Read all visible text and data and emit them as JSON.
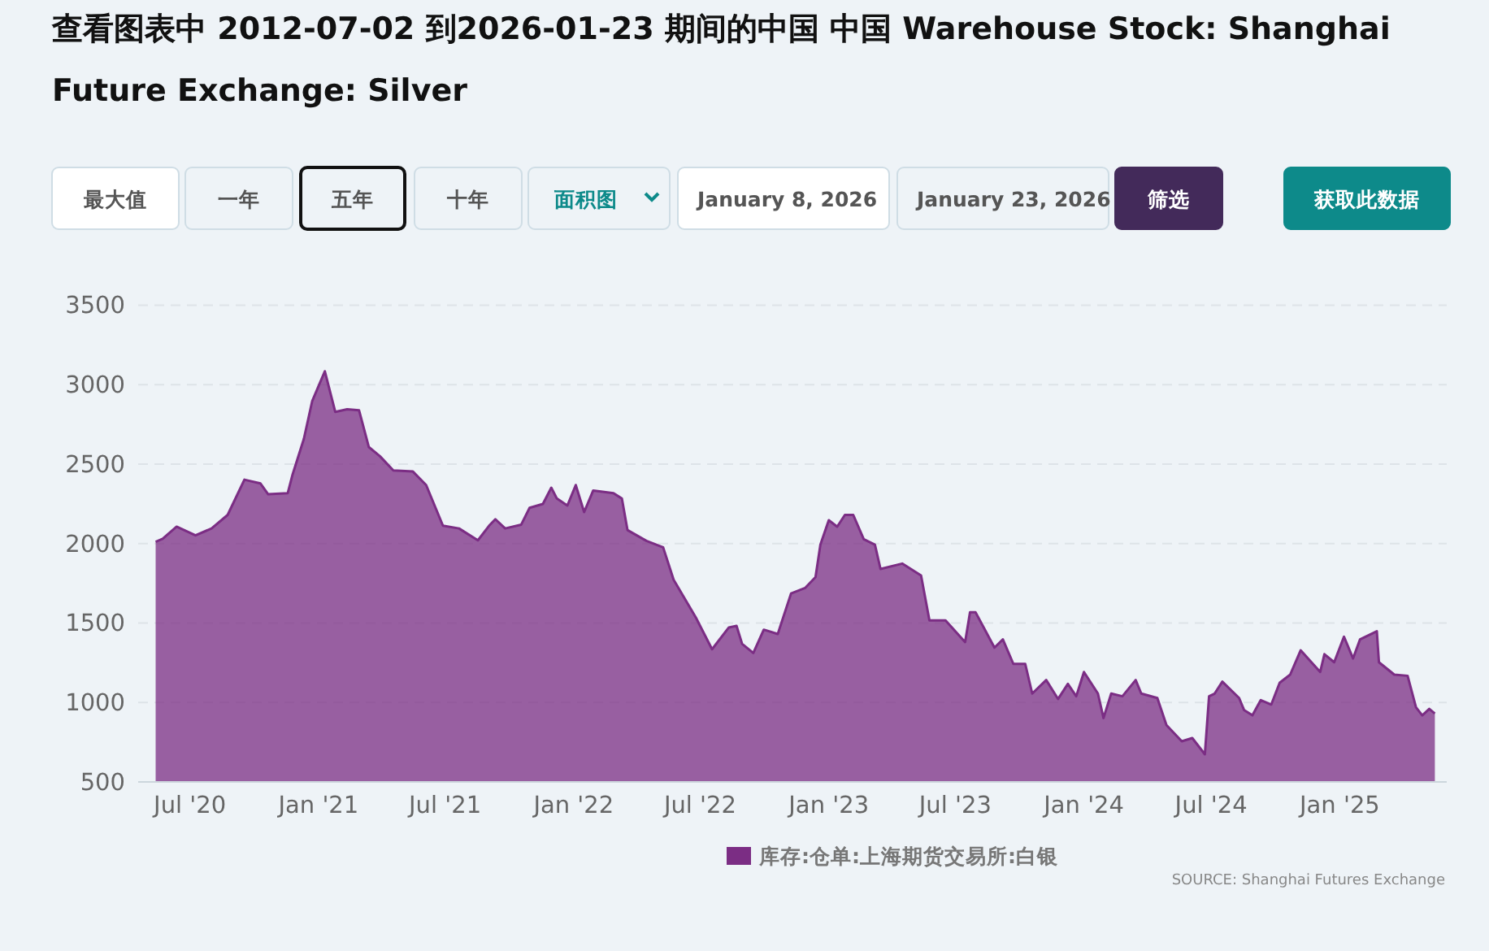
{
  "chart_data": {
    "type": "area",
    "title": "查看图表中 2012-07-02 到2026-01-23 期间的中国 中国 Warehouse Stock: Shanghai Future Exchange: Silver",
    "annotations": [
      "最大值",
      "一年",
      "五年",
      "十年",
      "面积图",
      "January 8, 2026",
      "January 23, 2026",
      "筛选",
      "获取此数据",
      "SOURCE: Shanghai Futures Exchange"
    ],
    "x": [
      "2020-05-13",
      "2020-05-23",
      "2020-06-12",
      "2020-07-09",
      "2020-08-01",
      "2020-08-24",
      "2020-09-17",
      "2020-10-10",
      "2020-10-21",
      "2020-11-18",
      "2020-11-25",
      "2020-12-11",
      "2020-12-23",
      "2021-01-10",
      "2021-01-25",
      "2021-02-11",
      "2021-02-28",
      "2021-03-14",
      "2021-03-30",
      "2021-04-18",
      "2021-05-16",
      "2021-06-04",
      "2021-06-28",
      "2021-07-21",
      "2021-08-17",
      "2021-09-02",
      "2021-09-11",
      "2021-09-25",
      "2021-10-18",
      "2021-10-30",
      "2021-11-18",
      "2021-11-30",
      "2021-12-08",
      "2021-12-23",
      "2022-01-04",
      "2022-01-16",
      "2022-01-29",
      "2022-02-27",
      "2022-03-11",
      "2022-03-19",
      "2022-04-15",
      "2022-05-09",
      "2022-05-24",
      "2022-06-25",
      "2022-07-18",
      "2022-08-11",
      "2022-08-22",
      "2022-08-30",
      "2022-09-15",
      "2022-09-30",
      "2022-10-20",
      "2022-11-08",
      "2022-11-28",
      "2022-12-13",
      "2022-12-20",
      "2023-01-01",
      "2023-01-13",
      "2023-01-24",
      "2023-02-05",
      "2023-02-20",
      "2023-03-08",
      "2023-03-16",
      "2023-04-16",
      "2023-05-13",
      "2023-05-25",
      "2023-06-17",
      "2023-07-15",
      "2023-07-22",
      "2023-07-30",
      "2023-08-26",
      "2023-09-07",
      "2023-09-22",
      "2023-10-09",
      "2023-10-19",
      "2023-11-08",
      "2023-11-25",
      "2023-12-09",
      "2023-12-21",
      "2024-01-01",
      "2024-01-21",
      "2024-01-29",
      "2024-02-09",
      "2024-02-25",
      "2024-03-15",
      "2024-03-23",
      "2024-04-15",
      "2024-04-28",
      "2024-05-20",
      "2024-06-04",
      "2024-06-22",
      "2024-06-28",
      "2024-07-06",
      "2024-07-17",
      "2024-08-10",
      "2024-08-17",
      "2024-08-29",
      "2024-09-10",
      "2024-09-25",
      "2024-10-07",
      "2024-10-22",
      "2024-11-06",
      "2024-12-04",
      "2024-12-10",
      "2024-12-24",
      "2025-01-07",
      "2025-01-20",
      "2025-01-30",
      "2025-02-23",
      "2025-02-26",
      "2025-03-20",
      "2025-04-08",
      "2025-04-20",
      "2025-04-29",
      "2025-05-09",
      "2025-05-17"
    ],
    "series": [
      {
        "name": "库存:仓单:上海期货交易所:白银",
        "color": "#7b2d84",
        "values": [
          2010,
          2030,
          2106,
          2051,
          2095,
          2180,
          2402,
          2378,
          2310,
          2317,
          2436,
          2658,
          2897,
          3084,
          2828,
          2845,
          2838,
          2607,
          2549,
          2460,
          2453,
          2368,
          2112,
          2095,
          2020,
          2112,
          2153,
          2095,
          2119,
          2225,
          2249,
          2351,
          2283,
          2239,
          2368,
          2198,
          2334,
          2317,
          2283,
          2085,
          2017,
          1976,
          1772,
          1533,
          1335,
          1472,
          1482,
          1369,
          1311,
          1458,
          1431,
          1686,
          1720,
          1789,
          1993,
          2147,
          2106,
          2180,
          2180,
          2027,
          1993,
          1840,
          1874,
          1799,
          1516,
          1516,
          1380,
          1567,
          1567,
          1345,
          1397,
          1243,
          1243,
          1056,
          1141,
          1022,
          1117,
          1039,
          1192,
          1056,
          902,
          1056,
          1039,
          1141,
          1056,
          1028,
          858,
          756,
          776,
          674,
          1039,
          1056,
          1131,
          1028,
          953,
          919,
          1015,
          987,
          1124,
          1175,
          1328,
          1192,
          1304,
          1253,
          1414,
          1277,
          1397,
          1448,
          1253,
          1175,
          1168,
          970,
          919,
          960,
          930
        ]
      }
    ],
    "xlim": [
      "2020-04-18",
      "2025-06-03"
    ],
    "xticks": [
      {
        "value": "2020-07-01",
        "label": "Jul '20"
      },
      {
        "value": "2021-01-01",
        "label": "Jan '21"
      },
      {
        "value": "2021-07-01",
        "label": "Jul '21"
      },
      {
        "value": "2022-01-01",
        "label": "Jan '22"
      },
      {
        "value": "2022-07-01",
        "label": "Jul '22"
      },
      {
        "value": "2023-01-01",
        "label": "Jan '23"
      },
      {
        "value": "2023-07-01",
        "label": "Jul '23"
      },
      {
        "value": "2024-01-01",
        "label": "Jan '24"
      },
      {
        "value": "2024-07-01",
        "label": "Jul '24"
      },
      {
        "value": "2025-01-01",
        "label": "Jan '25"
      }
    ],
    "ylim": [
      500,
      3500
    ],
    "yticks": [
      500,
      1000,
      1500,
      2000,
      2500,
      3000,
      3500
    ],
    "grid": "y",
    "legend": "bottom"
  }
}
